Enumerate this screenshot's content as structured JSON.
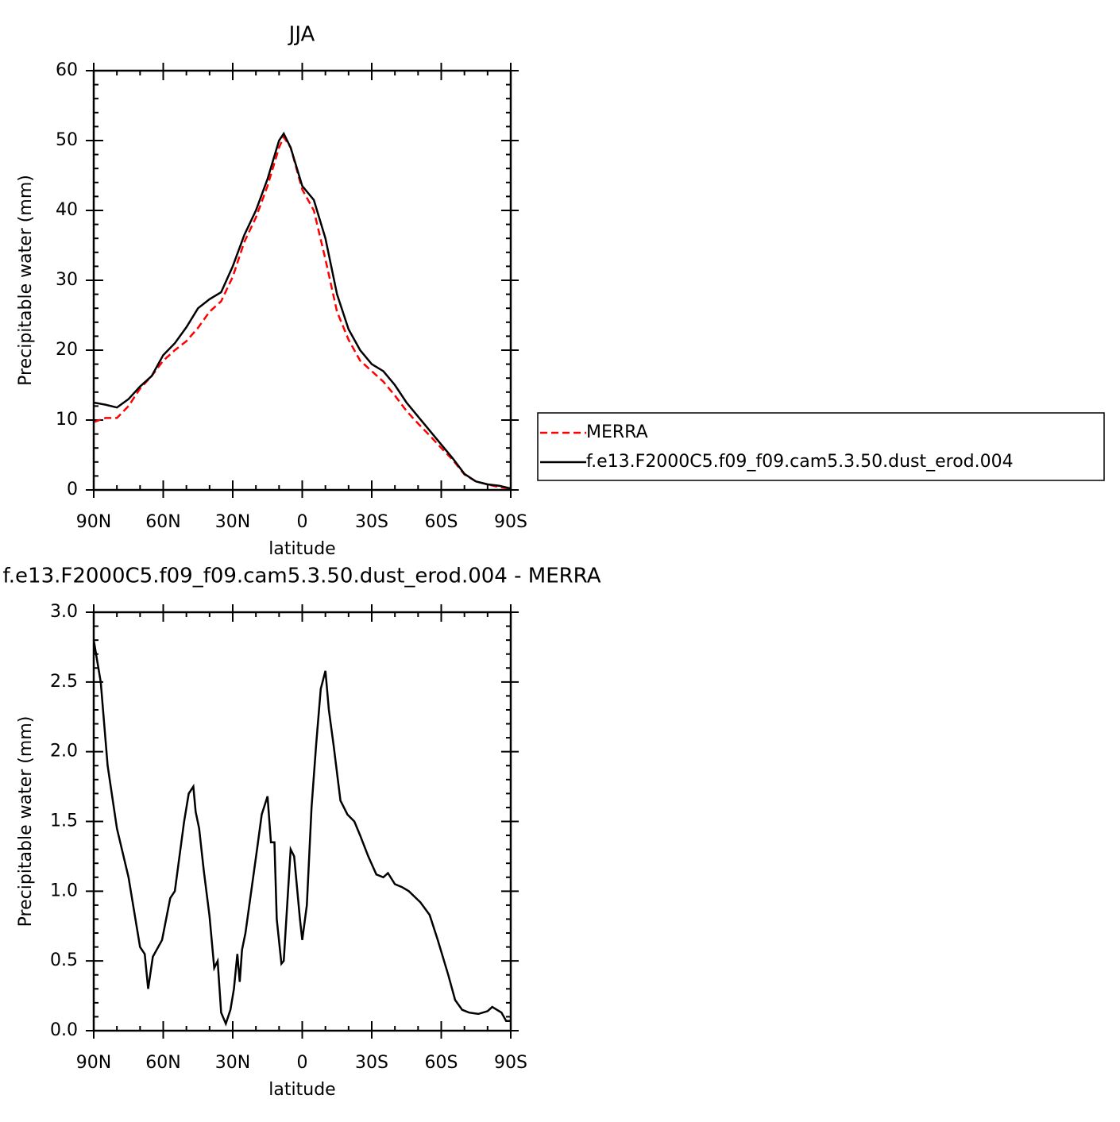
{
  "chart_data": [
    {
      "type": "line",
      "title": "JJA",
      "xlabel": "latitude",
      "ylabel": "Precipitable water (mm)",
      "x": [
        90,
        85,
        80,
        75,
        70,
        65,
        60,
        55,
        50,
        45,
        40,
        35,
        30,
        25,
        20,
        15,
        10,
        8,
        5,
        0,
        -5,
        -10,
        -15,
        -20,
        -25,
        -30,
        -35,
        -40,
        -45,
        -50,
        -55,
        -60,
        -65,
        -70,
        -75,
        -80,
        -85,
        -90
      ],
      "series": [
        {
          "name": "MERRA",
          "color": "#ff0000",
          "linestyle": "dashed",
          "values": [
            9.7,
            10.3,
            10.3,
            12,
            14.5,
            16.3,
            18.5,
            20,
            21.3,
            23.2,
            25.5,
            27,
            30.5,
            35.5,
            39,
            43.5,
            49,
            50.5,
            49,
            43,
            40,
            33,
            25.5,
            21.5,
            18.5,
            17,
            15.5,
            13.5,
            11.3,
            9.5,
            7.8,
            6,
            4.3,
            2.2,
            1.2,
            0.8,
            0.4,
            0.2
          ]
        },
        {
          "name": "f.e13.F2000C5.f09_f09.cam5.3.50.dust_erod.004",
          "color": "#000000",
          "linestyle": "solid",
          "values": [
            12.5,
            12.2,
            11.8,
            13,
            14.8,
            16.3,
            19.3,
            21,
            23.3,
            26,
            27.3,
            28.3,
            32,
            36.5,
            40,
            44.5,
            50,
            51,
            49,
            43.5,
            41.5,
            36,
            28,
            23,
            20,
            18,
            17,
            15,
            12.5,
            10.5,
            8.5,
            6.5,
            4.5,
            2.3,
            1.2,
            0.8,
            0.6,
            0.2
          ]
        }
      ],
      "xlim": [
        90,
        -90
      ],
      "xticks": [
        {
          "value": 90,
          "label": "90N"
        },
        {
          "value": 60,
          "label": "60N"
        },
        {
          "value": 30,
          "label": "30N"
        },
        0,
        {
          "value": -30,
          "label": "30S"
        },
        {
          "value": -60,
          "label": "60S"
        },
        {
          "value": -90,
          "label": "90S"
        }
      ],
      "ylim": [
        0,
        60
      ],
      "yticks": [
        0,
        10,
        20,
        30,
        40,
        50,
        60
      ],
      "legend": "right"
    },
    {
      "type": "line",
      "title": "f.e13.F2000C5.f09_f09.cam5.3.50.dust_erod.004 - MERRA",
      "xlabel": "latitude",
      "ylabel": "Precipitable water (mm)",
      "x": [
        90,
        87,
        84,
        80,
        75,
        70,
        68,
        66.5,
        64.5,
        60.5,
        57,
        55,
        51,
        49,
        47,
        46,
        44.5,
        42.5,
        40,
        38,
        36.5,
        35,
        33,
        31,
        29.5,
        28,
        27,
        26,
        24.5,
        22,
        19.5,
        17.5,
        15,
        13.5,
        12,
        11,
        9,
        8,
        5,
        3.5,
        1,
        0,
        -2,
        -4,
        -6,
        -8,
        -10,
        -11.5,
        -13.5,
        -16.5,
        -19.5,
        -22.5,
        -25,
        -28.5,
        -32,
        -35,
        -37,
        -40,
        -43,
        -46,
        -51,
        -55,
        -58.5,
        -63,
        -66,
        -69,
        -72,
        -76,
        -80,
        -82,
        -86,
        -88,
        -90
      ],
      "series": [
        {
          "color": "#000000",
          "linestyle": "solid",
          "values": [
            2.8,
            2.5,
            1.9,
            1.45,
            1.1,
            0.6,
            0.55,
            0.3,
            0.53,
            0.65,
            0.95,
            1.0,
            1.5,
            1.7,
            1.75,
            1.57,
            1.45,
            1.15,
            0.82,
            0.45,
            0.5,
            0.13,
            0.05,
            0.15,
            0.3,
            0.55,
            0.35,
            0.58,
            0.7,
            1.0,
            1.3,
            1.55,
            1.68,
            1.35,
            1.35,
            0.8,
            0.48,
            0.5,
            1.3,
            1.25,
            0.8,
            0.65,
            0.9,
            1.6,
            2.05,
            2.45,
            2.58,
            2.3,
            2.05,
            1.65,
            1.55,
            1.5,
            1.4,
            1.25,
            1.12,
            1.1,
            1.13,
            1.05,
            1.03,
            1.0,
            0.92,
            0.83,
            0.65,
            0.4,
            0.22,
            0.15,
            0.13,
            0.12,
            0.14,
            0.17,
            0.13,
            0.07,
            0.07
          ]
        }
      ],
      "xlim": [
        90,
        -90
      ],
      "xticks": [
        {
          "value": 90,
          "label": "90N"
        },
        {
          "value": 60,
          "label": "60N"
        },
        {
          "value": 30,
          "label": "30N"
        },
        0,
        {
          "value": -30,
          "label": "30S"
        },
        {
          "value": -60,
          "label": "60S"
        },
        {
          "value": -90,
          "label": "90S"
        }
      ],
      "ylim": [
        0,
        3
      ],
      "yticks": [
        {
          "value": 0,
          "label": "0.0"
        },
        0.5,
        {
          "value": 1,
          "label": "1.0"
        },
        1.5,
        {
          "value": 2,
          "label": "2.0"
        },
        2.5,
        {
          "value": 3,
          "label": "3.0"
        }
      ]
    }
  ]
}
